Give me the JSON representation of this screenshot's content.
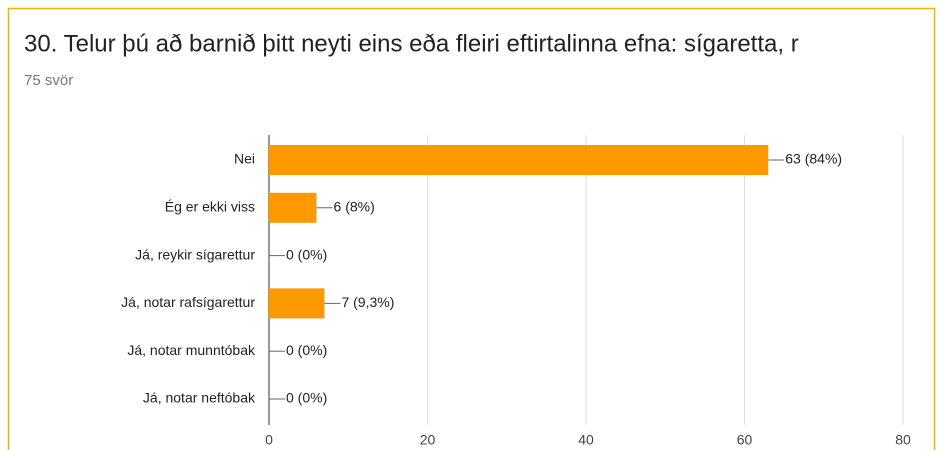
{
  "chart_data": {
    "type": "bar",
    "orientation": "horizontal",
    "title": "30. Telur þú að barnið þitt neyti eins eða fleiri eftirtalinna efna: sígaretta, r",
    "subtitle": "75 svör",
    "categories": [
      "Nei",
      "Ég er ekki viss",
      "Já, reykir sígarettur",
      "Já, notar rafsígarettur",
      "Já, notar munntóbak",
      "Já, notar neftóbak"
    ],
    "values": [
      63,
      6,
      0,
      7,
      0,
      0
    ],
    "value_labels": [
      "63 (84%)",
      "6 (8%)",
      "0 (0%)",
      "7 (9,3%)",
      "0 (0%)",
      "0 (0%)"
    ],
    "color": "#ff9900",
    "xlim": [
      0,
      80
    ],
    "xticks": [
      0,
      20,
      40,
      60,
      80
    ],
    "grid": true
  }
}
